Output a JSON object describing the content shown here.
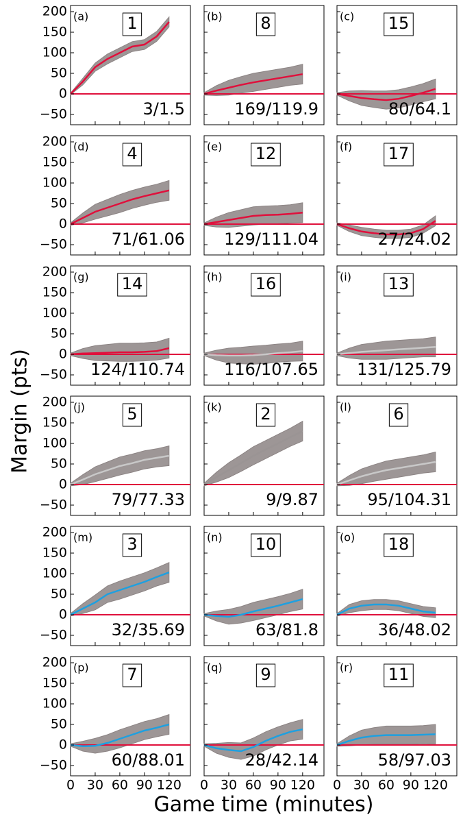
{
  "chart_data": {
    "type": "small-multiples",
    "ylabel": "Margin (pts)",
    "xlabel": "Game time (minutes)",
    "xlim": [
      0,
      146
    ],
    "ylim": [
      -75,
      215
    ],
    "xticks": [
      0,
      30,
      60,
      90,
      120
    ],
    "yticks": [
      {
        "value": -50,
        "label": "−50"
      },
      0,
      50,
      100,
      150,
      200
    ],
    "reference_line": 0,
    "reference_color": "#e0103c",
    "band_color": "#8c8484",
    "panels": [
      {
        "type": "line",
        "label": "(a)",
        "rank": "1",
        "annotation": "3/1.5",
        "x": [
          0,
          15,
          30,
          45,
          60,
          75,
          90,
          105,
          120
        ],
        "series": [
          {
            "color": "#e0103c",
            "values": [
              0,
              30,
              65,
              85,
              100,
              115,
              120,
              140,
              175
            ]
          }
        ],
        "band_lower": [
          -2,
          22,
          55,
          73,
          88,
          103,
          108,
          128,
          163
        ],
        "band_upper": [
          2,
          38,
          75,
          97,
          112,
          127,
          132,
          152,
          187
        ]
      },
      {
        "type": "line",
        "label": "(b)",
        "rank": "8",
        "annotation": "169/119.9",
        "x": [
          0,
          15,
          30,
          45,
          60,
          75,
          90,
          105,
          120
        ],
        "series": [
          {
            "color": "#e0103c",
            "values": [
              0,
              8,
              15,
              22,
              28,
              33,
              38,
              43,
              48
            ]
          }
        ],
        "band_lower": [
          -3,
          -4,
          -3,
          2,
          6,
          11,
          16,
          21,
          24
        ],
        "band_upper": [
          3,
          20,
          33,
          42,
          50,
          55,
          60,
          65,
          72
        ]
      },
      {
        "type": "line",
        "label": "(c)",
        "rank": "15",
        "annotation": "80/64.1",
        "x": [
          0,
          15,
          30,
          45,
          60,
          75,
          90,
          105,
          120
        ],
        "series": [
          {
            "color": "#e0103c",
            "values": [
              0,
              -5,
              -10,
              -13,
              -15,
              -12,
              -5,
              3,
              12
            ]
          }
        ],
        "band_lower": [
          -3,
          -17,
          -28,
          -33,
          -37,
          -34,
          -27,
          -19,
          -12
        ],
        "band_upper": [
          3,
          7,
          8,
          7,
          7,
          10,
          17,
          25,
          36
        ]
      },
      {
        "type": "line",
        "label": "(d)",
        "rank": "4",
        "annotation": "71/61.06",
        "x": [
          0,
          15,
          30,
          45,
          60,
          75,
          90,
          105,
          120
        ],
        "series": [
          {
            "color": "#e0103c",
            "values": [
              0,
              15,
              30,
              40,
              50,
              60,
              68,
              75,
              82
            ]
          }
        ],
        "band_lower": [
          -3,
          3,
          12,
          20,
          28,
          38,
          46,
          53,
          58
        ],
        "band_upper": [
          3,
          27,
          48,
          60,
          72,
          82,
          90,
          97,
          106
        ]
      },
      {
        "type": "line",
        "label": "(e)",
        "rank": "12",
        "annotation": "129/111.04",
        "x": [
          0,
          15,
          30,
          45,
          60,
          75,
          90,
          105,
          120
        ],
        "series": [
          {
            "color": "#e0103c",
            "values": [
              0,
              5,
              10,
              15,
              20,
              22,
              23,
              25,
              28
            ]
          }
        ],
        "band_lower": [
          -3,
          -7,
          -8,
          -5,
          -2,
          0,
          1,
          3,
          4
        ],
        "band_upper": [
          3,
          17,
          28,
          35,
          42,
          44,
          45,
          47,
          52
        ]
      },
      {
        "type": "line",
        "label": "(f)",
        "rank": "17",
        "annotation": "27/24.02",
        "x": [
          0,
          15,
          30,
          45,
          60,
          75,
          90,
          105,
          120
        ],
        "series": [
          {
            "color": "#e0103c",
            "values": [
              0,
              -10,
              -18,
              -22,
              -25,
              -25,
              -22,
              -12,
              8
            ]
          }
        ],
        "band_lower": [
          -3,
          -18,
          -28,
          -32,
          -35,
          -35,
          -32,
          -22,
          -4
        ],
        "band_upper": [
          3,
          -2,
          -8,
          -12,
          -15,
          -15,
          -12,
          -2,
          20
        ]
      },
      {
        "type": "line",
        "label": "(g)",
        "rank": "14",
        "annotation": "124/110.74",
        "x": [
          0,
          15,
          30,
          45,
          60,
          75,
          90,
          105,
          120
        ],
        "series": [
          {
            "color": "#e0103c",
            "values": [
              0,
              2,
              3,
              4,
              5,
              5,
              6,
              8,
              15
            ]
          }
        ],
        "band_lower": [
          -3,
          -10,
          -15,
          -16,
          -17,
          -17,
          -16,
          -14,
          -9
        ],
        "band_upper": [
          3,
          14,
          21,
          24,
          27,
          27,
          28,
          30,
          39
        ]
      },
      {
        "type": "line",
        "label": "(h)",
        "rank": "16",
        "annotation": "116/107.65",
        "x": [
          0,
          15,
          30,
          45,
          60,
          75,
          90,
          105,
          120
        ],
        "series": [
          {
            "color": "#c8c8c8",
            "values": [
              0,
              -2,
              -3,
              -3,
              -2,
              0,
              3,
              5,
              8
            ]
          }
        ],
        "band_lower": [
          -3,
          -14,
          -21,
          -23,
          -24,
          -22,
          -19,
          -17,
          -16
        ],
        "band_upper": [
          3,
          10,
          15,
          17,
          20,
          22,
          25,
          27,
          32
        ]
      },
      {
        "type": "line",
        "label": "(i)",
        "rank": "13",
        "annotation": "131/125.79",
        "x": [
          0,
          15,
          30,
          45,
          60,
          75,
          90,
          105,
          120
        ],
        "series": [
          {
            "color": "#c8c8c8",
            "values": [
              0,
              3,
              6,
              8,
              10,
              12,
              14,
              16,
              18
            ]
          }
        ],
        "band_lower": [
          -3,
          -9,
          -12,
          -12,
          -12,
          -10,
          -8,
          -6,
          -6
        ],
        "band_upper": [
          3,
          15,
          24,
          28,
          32,
          34,
          36,
          38,
          42
        ]
      },
      {
        "type": "line",
        "label": "(j)",
        "rank": "5",
        "annotation": "79/77.33",
        "x": [
          0,
          15,
          30,
          45,
          60,
          75,
          90,
          105,
          120
        ],
        "series": [
          {
            "color": "#c8c8c8",
            "values": [
              0,
              12,
              25,
              35,
              45,
              52,
              60,
              65,
              70
            ]
          }
        ],
        "band_lower": [
          -3,
          0,
          7,
          15,
          23,
          30,
          38,
          43,
          46
        ],
        "band_upper": [
          3,
          24,
          43,
          55,
          67,
          74,
          82,
          87,
          94
        ]
      },
      {
        "type": "line",
        "label": "(k)",
        "rank": "2",
        "annotation": "9/9.87",
        "x": [
          0,
          15,
          30,
          45,
          60,
          75,
          90,
          105,
          120
        ],
        "series": [
          {
            "color": "#9a9494",
            "values": [
              0,
              18,
              35,
              52,
              70,
              85,
              100,
              115,
              130
            ]
          }
        ],
        "band_lower": [
          -3,
          6,
          17,
          32,
          48,
          63,
          78,
          93,
          106
        ],
        "band_upper": [
          3,
          30,
          53,
          72,
          92,
          107,
          122,
          137,
          154
        ]
      },
      {
        "type": "line",
        "label": "(l)",
        "rank": "6",
        "annotation": "95/104.31",
        "x": [
          0,
          15,
          30,
          45,
          60,
          75,
          90,
          105,
          120
        ],
        "series": [
          {
            "color": "#c8c8c8",
            "values": [
              0,
              10,
              20,
              28,
              35,
              40,
              45,
              50,
              55
            ]
          }
        ],
        "band_lower": [
          -3,
          -2,
          2,
          8,
          13,
          18,
          23,
          28,
          31
        ],
        "band_upper": [
          3,
          22,
          38,
          48,
          57,
          62,
          67,
          72,
          79
        ]
      },
      {
        "type": "line",
        "label": "(m)",
        "rank": "3",
        "annotation": "32/35.69",
        "x": [
          0,
          15,
          30,
          45,
          60,
          75,
          90,
          105,
          120
        ],
        "series": [
          {
            "color": "#1ea0e0",
            "values": [
              0,
              15,
              30,
              50,
              60,
              70,
              80,
              92,
              103
            ]
          }
        ],
        "band_lower": [
          -3,
          3,
          12,
          30,
          38,
          48,
          58,
          70,
          79
        ],
        "band_upper": [
          3,
          27,
          48,
          70,
          82,
          92,
          102,
          114,
          127
        ]
      },
      {
        "type": "line",
        "label": "(n)",
        "rank": "10",
        "annotation": "63/81.8",
        "x": [
          0,
          15,
          30,
          45,
          60,
          75,
          90,
          105,
          120
        ],
        "series": [
          {
            "color": "#1ea0e0",
            "values": [
              0,
              -3,
              -5,
              0,
              8,
              15,
              22,
              30,
              38
            ]
          }
        ],
        "band_lower": [
          -3,
          -15,
          -23,
          -20,
          -14,
          -7,
          0,
          8,
          14
        ],
        "band_upper": [
          3,
          9,
          13,
          20,
          30,
          37,
          44,
          52,
          62
        ]
      },
      {
        "type": "line",
        "label": "(o)",
        "rank": "18",
        "annotation": "36/48.02",
        "x": [
          0,
          15,
          30,
          45,
          60,
          75,
          90,
          105,
          120
        ],
        "series": [
          {
            "color": "#1ea0e0",
            "values": [
              0,
              15,
              22,
              25,
              25,
              22,
              15,
              8,
              5
            ]
          }
        ],
        "band_lower": [
          -3,
          5,
          10,
          13,
          13,
          10,
          3,
          -4,
          -7
        ],
        "band_upper": [
          3,
          25,
          34,
          37,
          37,
          34,
          27,
          20,
          17
        ]
      },
      {
        "type": "line",
        "label": "(p)",
        "rank": "7",
        "annotation": "60/88.01",
        "x": [
          0,
          15,
          30,
          45,
          60,
          75,
          90,
          105,
          120
        ],
        "series": [
          {
            "color": "#1ea0e0",
            "values": [
              0,
              -3,
              -2,
              5,
              15,
              25,
              35,
              42,
              50
            ]
          }
        ],
        "band_lower": [
          -3,
          -15,
          -20,
          -15,
          -7,
          3,
          13,
          20,
          26
        ],
        "band_upper": [
          3,
          9,
          16,
          25,
          37,
          47,
          57,
          64,
          74
        ]
      },
      {
        "type": "line",
        "label": "(q)",
        "rank": "9",
        "annotation": "28/42.14",
        "x": [
          0,
          15,
          30,
          45,
          60,
          75,
          90,
          105,
          120
        ],
        "series": [
          {
            "color": "#1ea0e0",
            "values": [
              0,
              -8,
              -12,
              -15,
              -5,
              10,
              22,
              32,
              38
            ]
          }
        ],
        "band_lower": [
          -3,
          -20,
          -30,
          -35,
          -27,
          -12,
          0,
          10,
          14
        ],
        "band_upper": [
          3,
          4,
          6,
          5,
          17,
          32,
          44,
          54,
          62
        ]
      },
      {
        "type": "line",
        "label": "(r)",
        "rank": "11",
        "annotation": "58/97.03",
        "x": [
          0,
          15,
          30,
          45,
          60,
          75,
          90,
          105,
          120
        ],
        "series": [
          {
            "color": "#1ea0e0",
            "values": [
              0,
              10,
              18,
              22,
              24,
              24,
              24,
              25,
              26
            ]
          }
        ],
        "band_lower": [
          -3,
          -2,
          0,
          2,
          2,
          2,
          2,
          3,
          2
        ],
        "band_upper": [
          3,
          22,
          36,
          42,
          46,
          46,
          46,
          47,
          50
        ]
      }
    ]
  }
}
